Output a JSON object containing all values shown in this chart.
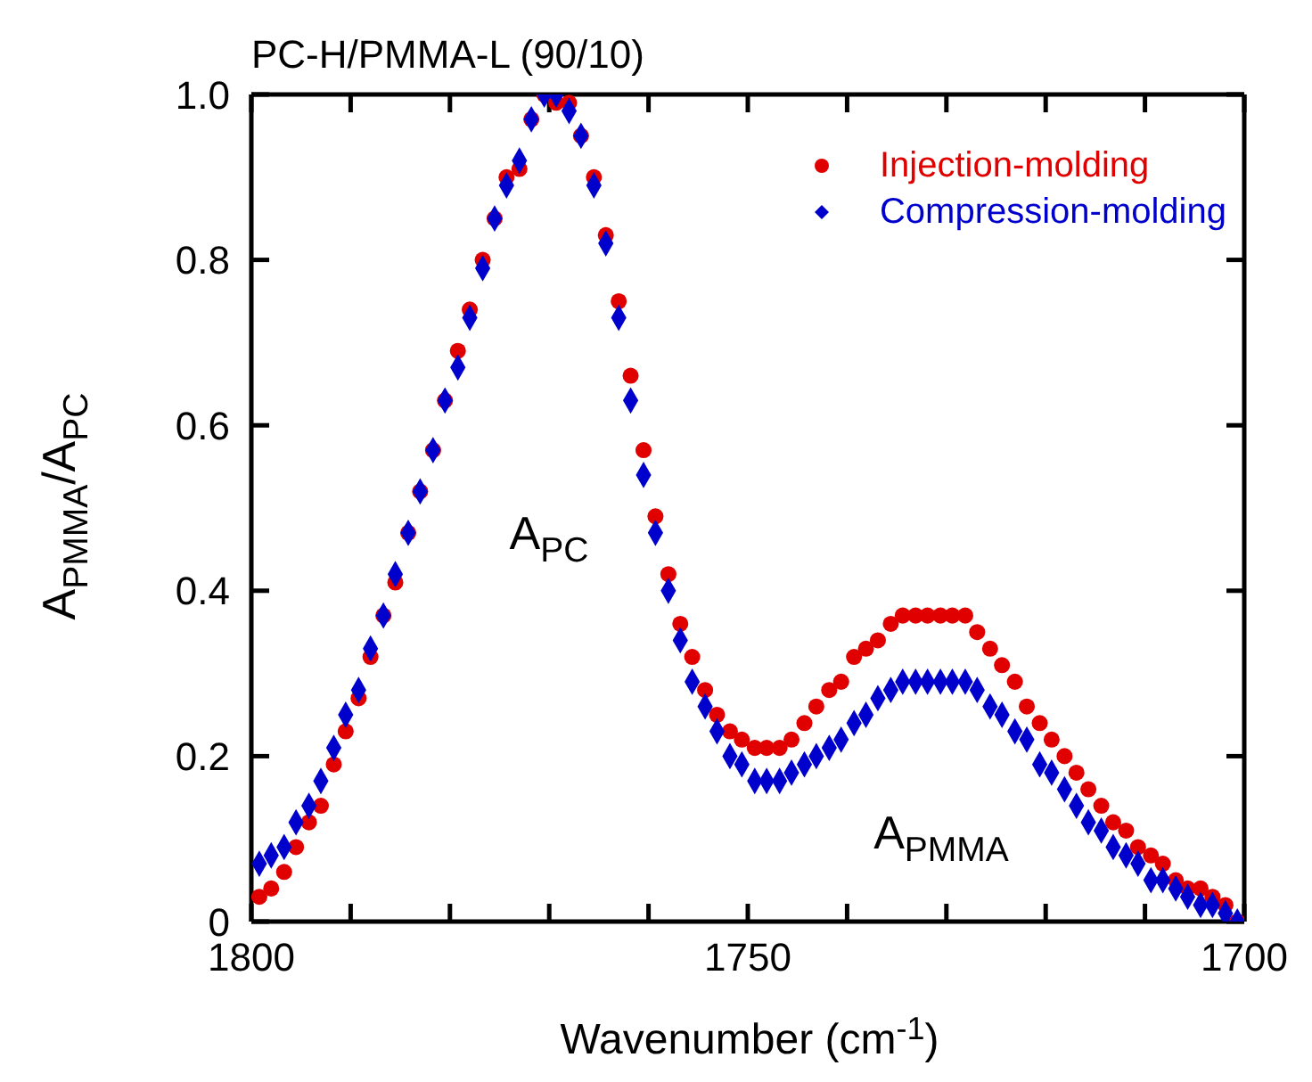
{
  "chart_data": {
    "type": "scatter",
    "title": "PC-H/PMMA-L (90/10)",
    "xlabel": "Wavenumber (cm$^{-1}$)",
    "ylabel": "A$_{PMMA}$/A$_{PC}$",
    "annotations": [
      "A$_{PC}$",
      "A$_{PMMA}$"
    ],
    "x": [
      1799.2,
      1798.0,
      1796.7,
      1795.5,
      1794.2,
      1793.0,
      1791.7,
      1790.5,
      1789.2,
      1788.0,
      1786.7,
      1785.5,
      1784.2,
      1783.0,
      1781.7,
      1780.5,
      1779.2,
      1778.0,
      1776.7,
      1775.5,
      1774.3,
      1773.0,
      1771.8,
      1770.5,
      1769.3,
      1768.0,
      1766.8,
      1765.5,
      1764.3,
      1763.0,
      1761.8,
      1760.5,
      1759.3,
      1758.0,
      1756.8,
      1755.6,
      1754.3,
      1753.1,
      1751.8,
      1750.6,
      1749.3,
      1748.1,
      1746.8,
      1745.6,
      1744.3,
      1743.1,
      1741.8,
      1740.6,
      1739.3,
      1738.1,
      1736.9,
      1735.6,
      1734.4,
      1733.1,
      1731.9,
      1730.6,
      1729.4,
      1728.1,
      1726.9,
      1725.6,
      1724.4,
      1723.1,
      1721.9,
      1720.6,
      1719.4,
      1718.1,
      1716.9,
      1715.7,
      1714.4,
      1713.2,
      1711.9,
      1710.7,
      1709.4,
      1708.2,
      1706.9,
      1705.7,
      1704.4,
      1703.2,
      1701.9,
      1700.7
    ],
    "series": [
      {
        "name": "Injection-molding",
        "color": "#e00000",
        "marker": "circle",
        "values": [
          0.03,
          0.04,
          0.06,
          0.09,
          0.12,
          0.14,
          0.19,
          0.23,
          0.27,
          0.32,
          0.37,
          0.41,
          0.47,
          0.52,
          0.57,
          0.63,
          0.69,
          0.74,
          0.8,
          0.85,
          0.9,
          0.91,
          0.97,
          1.0,
          0.99,
          0.99,
          0.95,
          0.9,
          0.83,
          0.75,
          0.66,
          0.57,
          0.49,
          0.42,
          0.36,
          0.32,
          0.28,
          0.25,
          0.23,
          0.22,
          0.21,
          0.21,
          0.21,
          0.22,
          0.24,
          0.26,
          0.28,
          0.29,
          0.32,
          0.33,
          0.34,
          0.36,
          0.37,
          0.37,
          0.37,
          0.37,
          0.37,
          0.37,
          0.35,
          0.33,
          0.31,
          0.29,
          0.26,
          0.24,
          0.22,
          0.2,
          0.18,
          0.16,
          0.14,
          0.12,
          0.11,
          0.09,
          0.08,
          0.07,
          0.05,
          0.04,
          0.04,
          0.03,
          0.02,
          0.0
        ]
      },
      {
        "name": "Compression-molding",
        "color": "#0000cc",
        "marker": "diamond",
        "values": [
          0.07,
          0.08,
          0.09,
          0.12,
          0.14,
          0.17,
          0.21,
          0.25,
          0.28,
          0.33,
          0.37,
          0.42,
          0.47,
          0.52,
          0.57,
          0.63,
          0.67,
          0.73,
          0.79,
          0.85,
          0.89,
          0.92,
          0.97,
          1.0,
          1.0,
          0.98,
          0.95,
          0.89,
          0.82,
          0.73,
          0.63,
          0.54,
          0.47,
          0.4,
          0.34,
          0.29,
          0.26,
          0.23,
          0.2,
          0.19,
          0.17,
          0.17,
          0.17,
          0.18,
          0.19,
          0.2,
          0.21,
          0.22,
          0.24,
          0.25,
          0.27,
          0.28,
          0.29,
          0.29,
          0.29,
          0.29,
          0.29,
          0.29,
          0.28,
          0.26,
          0.25,
          0.23,
          0.22,
          0.19,
          0.18,
          0.16,
          0.14,
          0.12,
          0.11,
          0.09,
          0.08,
          0.07,
          0.05,
          0.05,
          0.04,
          0.03,
          0.02,
          0.02,
          0.01,
          0.0
        ]
      }
    ],
    "xlim": [
      1800,
      1700
    ],
    "xticks": [
      1800,
      {
        "value": 1790,
        "label": null
      },
      {
        "value": 1780,
        "label": null
      },
      {
        "value": 1770,
        "label": null
      },
      {
        "value": 1760,
        "label": null
      },
      1750,
      {
        "value": 1740,
        "label": null
      },
      {
        "value": 1730,
        "label": null
      },
      {
        "value": 1720,
        "label": null
      },
      {
        "value": 1710,
        "label": null
      },
      1700
    ],
    "ylim": [
      0,
      1
    ],
    "yticks": [
      0,
      0.2,
      0.4,
      0.6,
      0.8,
      {
        "value": 1,
        "label": "1.0"
      }
    ],
    "legend": "top right"
  }
}
